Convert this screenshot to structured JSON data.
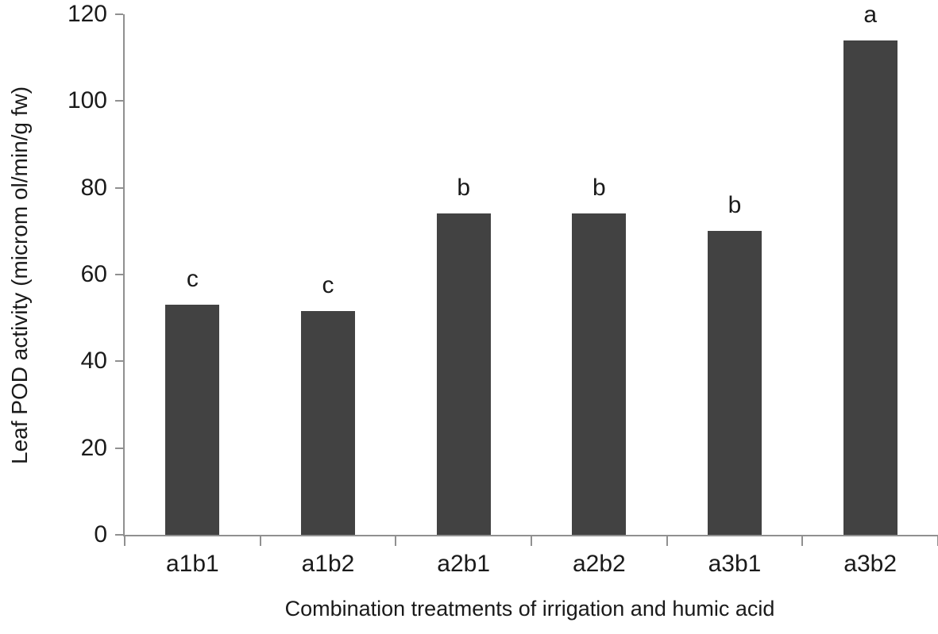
{
  "chart_data": {
    "type": "bar",
    "title": "",
    "categories": [
      "a1b1",
      "a1b2",
      "a2b1",
      "a2b2",
      "a3b1",
      "a3b2"
    ],
    "values": [
      53,
      51.5,
      74,
      74,
      70,
      114
    ],
    "bar_labels": [
      "c",
      "c",
      "b",
      "b",
      "b",
      "a"
    ],
    "xlabel": "Combination treatments of irrigation and humic acid",
    "ylabel": "Leaf POD activity (microm ol/min/g fw)",
    "ylim": [
      0,
      120
    ],
    "yticks": [
      0,
      20,
      40,
      60,
      80,
      100,
      120
    ],
    "grid": false,
    "legend": false,
    "bar_color": "#424242",
    "axis_color": "#909090",
    "text_color": "#1a1a1a",
    "background_color": "#ffffff"
  }
}
